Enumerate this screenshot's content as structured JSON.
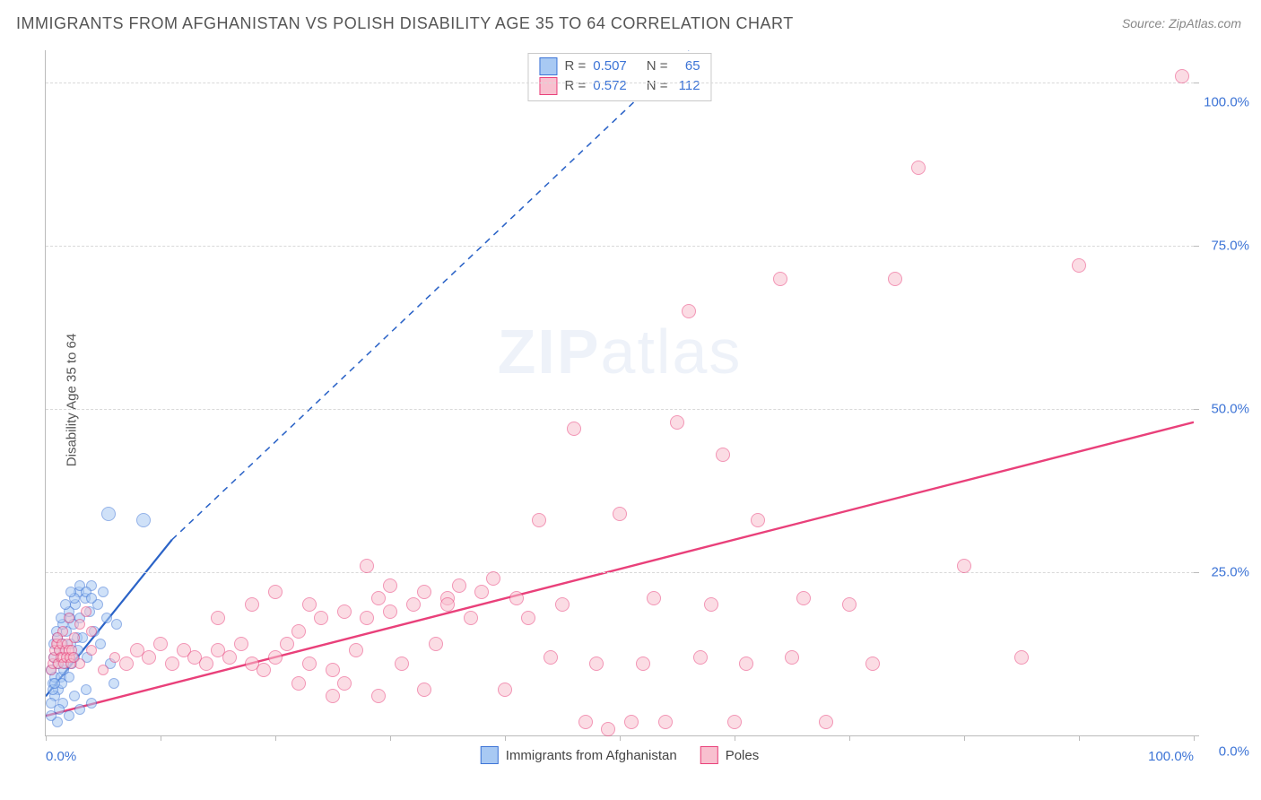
{
  "title": "IMMIGRANTS FROM AFGHANISTAN VS POLISH DISABILITY AGE 35 TO 64 CORRELATION CHART",
  "source_label": "Source: ",
  "source_value": "ZipAtlas.com",
  "yaxis_label": "Disability Age 35 to 64",
  "watermark_bold": "ZIP",
  "watermark_thin": "atlas",
  "chart": {
    "type": "scatter-correlation",
    "xlim": [
      0,
      100
    ],
    "ylim": [
      0,
      105
    ],
    "ytick_values": [
      0,
      25,
      50,
      75,
      100
    ],
    "ytick_labels": [
      "0.0%",
      "25.0%",
      "50.0%",
      "75.0%",
      "100.0%"
    ],
    "xtick_values": [
      0,
      10,
      20,
      30,
      40,
      50,
      60,
      70,
      80,
      90,
      100
    ],
    "xtick_labels_shown": {
      "0": "0.0%",
      "100": "100.0%"
    },
    "background_color": "#ffffff",
    "grid_color": "#d9d9d9",
    "marker_radius": 8,
    "marker_radius_small_cluster": 6,
    "marker_border_width": 1.2,
    "series": [
      {
        "name": "Immigrants from Afghanistan",
        "fill": "#a8c9f3",
        "fill_alpha": 0.55,
        "stroke": "#3d74d6",
        "R": 0.507,
        "N": 65,
        "trend": {
          "x1": 0,
          "y1": 6,
          "x2": 11,
          "y2": 30,
          "dash_to_x": 56,
          "dash_to_y": 105,
          "solid_color": "#2b63c7",
          "width": 2.2,
          "dashed": true
        },
        "points": [
          [
            0.5,
            10
          ],
          [
            0.6,
            8
          ],
          [
            0.7,
            12
          ],
          [
            0.8,
            9
          ],
          [
            1.0,
            11
          ],
          [
            1.1,
            7
          ],
          [
            1.2,
            13
          ],
          [
            1.3,
            9
          ],
          [
            1.4,
            8
          ],
          [
            1.5,
            14
          ],
          [
            1.6,
            10
          ],
          [
            1.7,
            11
          ],
          [
            1.8,
            16
          ],
          [
            1.9,
            12
          ],
          [
            2.0,
            9
          ],
          [
            2.1,
            18
          ],
          [
            2.2,
            14
          ],
          [
            2.3,
            11
          ],
          [
            2.4,
            17
          ],
          [
            2.5,
            12
          ],
          [
            2.6,
            20
          ],
          [
            2.7,
            15
          ],
          [
            2.8,
            13
          ],
          [
            2.9,
            22
          ],
          [
            3.0,
            18
          ],
          [
            3.2,
            15
          ],
          [
            3.4,
            21
          ],
          [
            3.6,
            12
          ],
          [
            3.8,
            19
          ],
          [
            4.0,
            23
          ],
          [
            4.2,
            16
          ],
          [
            4.5,
            20
          ],
          [
            4.8,
            14
          ],
          [
            5.0,
            22
          ],
          [
            5.3,
            18
          ],
          [
            5.6,
            11
          ],
          [
            5.9,
            8
          ],
          [
            6.2,
            17
          ],
          [
            4.0,
            5
          ],
          [
            3.0,
            4
          ],
          [
            2.0,
            3
          ],
          [
            1.0,
            2
          ],
          [
            0.5,
            3
          ],
          [
            1.5,
            5
          ],
          [
            2.5,
            6
          ],
          [
            3.5,
            7
          ],
          [
            0.8,
            6
          ],
          [
            1.2,
            4
          ],
          [
            2.0,
            19
          ],
          [
            2.5,
            21
          ],
          [
            5.5,
            34
          ],
          [
            8.5,
            33
          ],
          [
            3.0,
            23
          ],
          [
            3.5,
            22
          ],
          [
            4.0,
            21
          ],
          [
            1.0,
            15
          ],
          [
            1.5,
            17
          ],
          [
            0.7,
            14
          ],
          [
            0.9,
            16
          ],
          [
            1.3,
            18
          ],
          [
            1.7,
            20
          ],
          [
            2.2,
            22
          ],
          [
            0.5,
            5
          ],
          [
            0.6,
            7
          ],
          [
            0.8,
            8
          ]
        ]
      },
      {
        "name": "Poles",
        "fill": "#f8c0cf",
        "fill_alpha": 0.55,
        "stroke": "#e9407a",
        "R": 0.572,
        "N": 112,
        "trend": {
          "x1": 0,
          "y1": 3,
          "x2": 100,
          "y2": 48,
          "solid_color": "#e9407a",
          "width": 2.4,
          "dashed": false
        },
        "points": [
          [
            2,
            12
          ],
          [
            3,
            11
          ],
          [
            4,
            13
          ],
          [
            5,
            10
          ],
          [
            6,
            12
          ],
          [
            7,
            11
          ],
          [
            8,
            13
          ],
          [
            9,
            12
          ],
          [
            10,
            14
          ],
          [
            11,
            11
          ],
          [
            12,
            13
          ],
          [
            13,
            12
          ],
          [
            14,
            11
          ],
          [
            15,
            13
          ],
          [
            16,
            12
          ],
          [
            17,
            14
          ],
          [
            18,
            11
          ],
          [
            19,
            10
          ],
          [
            20,
            12
          ],
          [
            21,
            14
          ],
          [
            22,
            16
          ],
          [
            23,
            11
          ],
          [
            24,
            18
          ],
          [
            25,
            10
          ],
          [
            26,
            19
          ],
          [
            27,
            13
          ],
          [
            28,
            26
          ],
          [
            29,
            21
          ],
          [
            30,
            19
          ],
          [
            31,
            11
          ],
          [
            32,
            20
          ],
          [
            33,
            22
          ],
          [
            34,
            14
          ],
          [
            35,
            21
          ],
          [
            36,
            23
          ],
          [
            37,
            18
          ],
          [
            38,
            22
          ],
          [
            39,
            24
          ],
          [
            40,
            7
          ],
          [
            41,
            21
          ],
          [
            42,
            18
          ],
          [
            43,
            33
          ],
          [
            44,
            12
          ],
          [
            45,
            20
          ],
          [
            46,
            47
          ],
          [
            47,
            2
          ],
          [
            48,
            11
          ],
          [
            49,
            1
          ],
          [
            50,
            34
          ],
          [
            51,
            2
          ],
          [
            52,
            11
          ],
          [
            53,
            21
          ],
          [
            54,
            2
          ],
          [
            55,
            48
          ],
          [
            56,
            65
          ],
          [
            57,
            12
          ],
          [
            58,
            20
          ],
          [
            59,
            43
          ],
          [
            60,
            2
          ],
          [
            61,
            11
          ],
          [
            62,
            33
          ],
          [
            64,
            70
          ],
          [
            65,
            12
          ],
          [
            66,
            21
          ],
          [
            68,
            2
          ],
          [
            70,
            20
          ],
          [
            72,
            11
          ],
          [
            74,
            70
          ],
          [
            76,
            87
          ],
          [
            80,
            26
          ],
          [
            85,
            12
          ],
          [
            90,
            72
          ],
          [
            99,
            101
          ],
          [
            1,
            14
          ],
          [
            1.5,
            16
          ],
          [
            2,
            18
          ],
          [
            2.5,
            15
          ],
          [
            3,
            17
          ],
          [
            3.5,
            19
          ],
          [
            4,
            16
          ],
          [
            0.5,
            10
          ],
          [
            0.6,
            11
          ],
          [
            0.7,
            12
          ],
          [
            0.8,
            13
          ],
          [
            0.9,
            14
          ],
          [
            1.0,
            15
          ],
          [
            1.1,
            11
          ],
          [
            1.2,
            13
          ],
          [
            1.3,
            12
          ],
          [
            1.4,
            14
          ],
          [
            1.5,
            12
          ],
          [
            1.6,
            11
          ],
          [
            1.7,
            13
          ],
          [
            1.8,
            12
          ],
          [
            1.9,
            14
          ],
          [
            2.0,
            13
          ],
          [
            2.1,
            12
          ],
          [
            2.2,
            11
          ],
          [
            2.3,
            13
          ],
          [
            2.4,
            12
          ],
          [
            22,
            8
          ],
          [
            25,
            6
          ],
          [
            28,
            18
          ],
          [
            30,
            23
          ],
          [
            33,
            7
          ],
          [
            35,
            20
          ],
          [
            15,
            18
          ],
          [
            18,
            20
          ],
          [
            20,
            22
          ],
          [
            23,
            20
          ],
          [
            26,
            8
          ],
          [
            29,
            6
          ]
        ]
      }
    ]
  },
  "legend_top": {
    "rows": [
      {
        "swatch_fill": "#a8c9f3",
        "swatch_stroke": "#3d74d6",
        "r_label": "R =",
        "r_val": "0.507",
        "n_label": "N =",
        "n_val": "65"
      },
      {
        "swatch_fill": "#f8c0cf",
        "swatch_stroke": "#e9407a",
        "r_label": "R =",
        "r_val": "0.572",
        "n_label": "N =",
        "n_val": "112"
      }
    ]
  },
  "legend_bottom": [
    {
      "swatch_fill": "#a8c9f3",
      "swatch_stroke": "#3d74d6",
      "label": "Immigrants from Afghanistan"
    },
    {
      "swatch_fill": "#f8c0cf",
      "swatch_stroke": "#e9407a",
      "label": "Poles"
    }
  ]
}
